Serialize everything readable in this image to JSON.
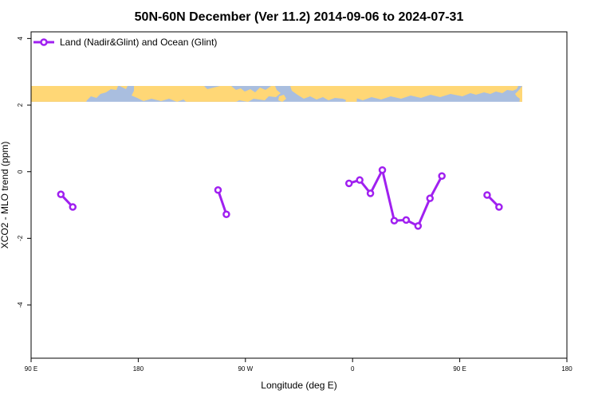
{
  "chart_data": {
    "type": "line",
    "title": "50N-60N December (Ver 11.2)   2014-09-06 to 2024-07-31",
    "xlabel": "Longitude (deg E)",
    "ylabel": "XCO2 - MLO trend (ppm)",
    "xlim": [
      90,
      540
    ],
    "ylim": [
      -5.6,
      4.2
    ],
    "x_ticks": [
      {
        "value": 90,
        "label": "90 E"
      },
      {
        "value": 180,
        "label": "180"
      },
      {
        "value": 270,
        "label": "90 W"
      },
      {
        "value": 360,
        "label": "0"
      },
      {
        "value": 450,
        "label": "90 E"
      },
      {
        "value": 540,
        "label": "180"
      }
    ],
    "y_ticks": [
      {
        "value": 4,
        "label": "4"
      },
      {
        "value": 2,
        "label": "2"
      },
      {
        "value": 0,
        "label": "0"
      },
      {
        "value": -2,
        "label": "-2"
      },
      {
        "value": -4,
        "label": "-4"
      }
    ],
    "legend": {
      "position": "top-left",
      "entries": [
        "Land (Nadir&Glint) and Ocean (Glint)"
      ]
    },
    "map_strip": {
      "y_range": [
        2.1,
        2.65
      ],
      "ocean_color": "#a9bedf",
      "land_color": "#ffd776"
    },
    "series_color": "#a020f0",
    "series": [
      {
        "name": "Land (Nadir&Glint) and Ocean (Glint)",
        "segments": [
          [
            [
              115,
              -0.68
            ],
            [
              125,
              -1.06
            ]
          ],
          [
            [
              247,
              -0.55
            ],
            [
              254,
              -1.28
            ]
          ],
          [
            [
              357,
              -0.35
            ],
            [
              366,
              -0.25
            ],
            [
              375,
              -0.65
            ],
            [
              385,
              0.05
            ],
            [
              395,
              -1.47
            ],
            [
              405,
              -1.45
            ],
            [
              415,
              -1.63
            ],
            [
              425,
              -0.8
            ],
            [
              435,
              -0.13
            ]
          ],
          [
            [
              473,
              -0.7
            ],
            [
              483,
              -1.06
            ]
          ]
        ]
      }
    ]
  }
}
